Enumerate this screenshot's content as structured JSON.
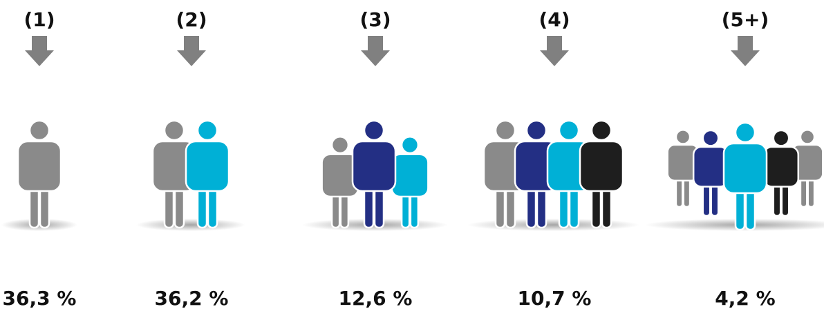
{
  "groups": [
    {
      "label": "(1)",
      "value_label": "36,3 %"
    },
    {
      "label": "(2)",
      "value_label": "36,2 %"
    },
    {
      "label": "(3)",
      "value_label": "12,6 %"
    },
    {
      "label": "(4)",
      "value_label": "10,7 %"
    },
    {
      "label": "(5+)",
      "value_label": "4,2 %"
    }
  ]
}
